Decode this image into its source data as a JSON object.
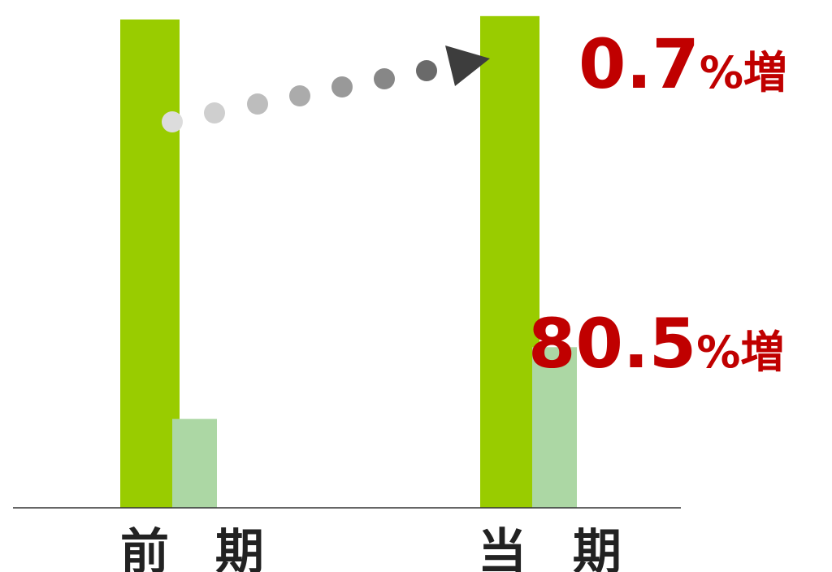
{
  "chart_data": {
    "type": "bar",
    "categories": [
      "前 期",
      "当 期"
    ],
    "series": [
      {
        "color": "#99cc00",
        "values": [
          100,
          100.7
        ]
      },
      {
        "color": "#acd7a4",
        "values": [
          18.2,
          32.9
        ]
      }
    ],
    "ylim": [
      0,
      102
    ],
    "grid": false,
    "legend": "none",
    "annotations": [
      {
        "value": "0.7",
        "suffix": "%増",
        "color": "#c00000"
      },
      {
        "value": "80.5",
        "suffix": "%増",
        "color": "#c00000"
      }
    ],
    "arrow": {
      "from": "前 期",
      "to": "当 期",
      "style": "dotted-gradient"
    }
  }
}
